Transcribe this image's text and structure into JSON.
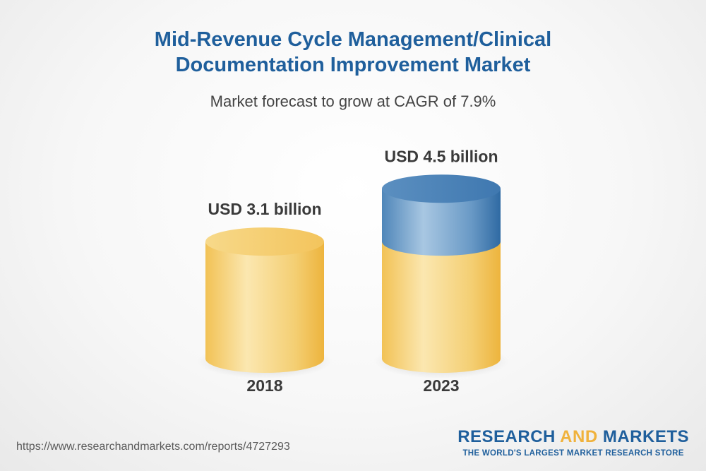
{
  "header": {
    "title_line1": "Mid-Revenue Cycle Management/Clinical",
    "title_line2": "Documentation Improvement Market",
    "subtitle": "Market forecast to grow at CAGR of 7.9%"
  },
  "chart_data": {
    "type": "bar",
    "title": "Mid-Revenue Cycle Management/Clinical Documentation Improvement Market",
    "subtitle": "Market forecast to grow at CAGR of 7.9%",
    "categories": [
      "2018",
      "2023"
    ],
    "values": [
      3.1,
      4.5
    ],
    "data_labels": [
      "USD 3.1 billion",
      "USD 4.5 billion"
    ],
    "unit": "USD billion",
    "grid": false,
    "legend": "none",
    "colors": {
      "base": "#f2c255",
      "base_highlight": "#fbe7b0",
      "growth": "#4f86b9",
      "growth_highlight": "#a8c7e2",
      "label": "#3a3a3a"
    }
  },
  "footer": {
    "url": "https://www.researchandmarkets.com/reports/4727293",
    "brand_part1": "RESEARCH ",
    "brand_part2": "AND",
    "brand_part3": " MARKETS",
    "tagline": "THE WORLD'S LARGEST MARKET RESEARCH STORE"
  }
}
